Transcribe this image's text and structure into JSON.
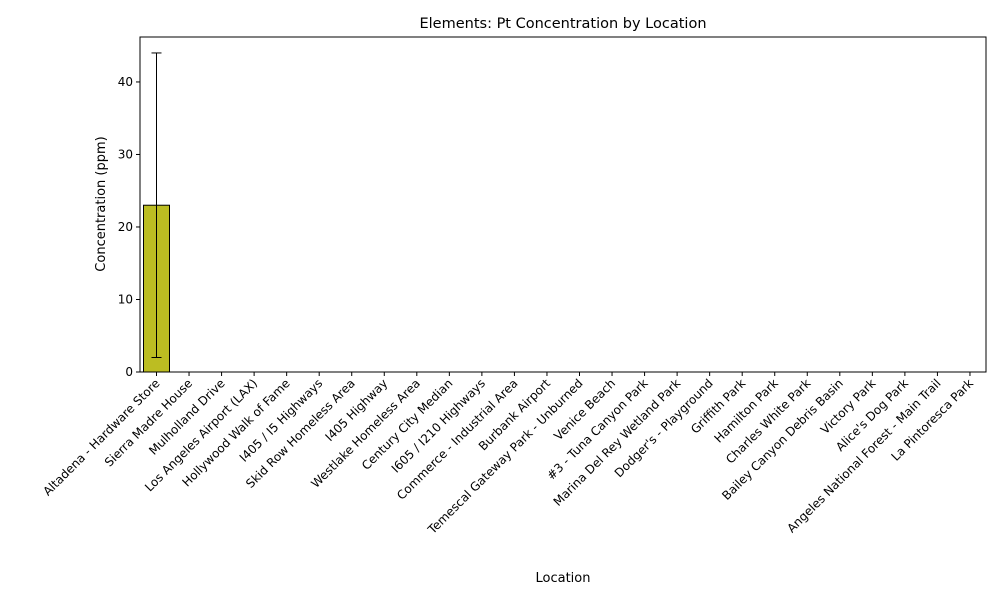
{
  "chart_data": {
    "type": "bar",
    "title": "Elements: Pt Concentration by Location",
    "xlabel": "Location",
    "ylabel": "Concentration (ppm)",
    "ylim": [
      0,
      46.2
    ],
    "yticks": [
      0,
      10,
      20,
      30,
      40
    ],
    "categories": [
      "Altadena - Hardware Store",
      "Sierra Madre House",
      "Mulholland Drive",
      "Los Angeles Airport (LAX)",
      "Hollywood Walk of Fame",
      "I405 / I5 Highways",
      "Skid Row Homeless Area",
      "I405 Highway",
      "Westlake Homeless Area",
      "Century City Median",
      "I605 / I210 Highways",
      "Commerce - Industrial Area",
      "Burbank Airport",
      "Temescal Gateway Park - Unburned",
      "Venice Beach",
      "#3 - Tuna Canyon Park",
      "Marina Del Rey Wetland Park",
      "Dodger's - Playground",
      "Griffith Park",
      "Hamilton Park",
      "Charles White Park",
      "Bailey Canyon Debris Basin",
      "Victory Park",
      "Alice's Dog Park",
      "Angeles National Forest - Main Trail",
      "La Pintoresca Park"
    ],
    "values": [
      23,
      0,
      0,
      0,
      0,
      0,
      0,
      0,
      0,
      0,
      0,
      0,
      0,
      0,
      0,
      0,
      0,
      0,
      0,
      0,
      0,
      0,
      0,
      0,
      0,
      0
    ],
    "error_low": [
      2,
      null,
      null,
      null,
      null,
      null,
      null,
      null,
      null,
      null,
      null,
      null,
      null,
      null,
      null,
      null,
      null,
      null,
      null,
      null,
      null,
      null,
      null,
      null,
      null,
      null
    ],
    "error_high": [
      44,
      null,
      null,
      null,
      null,
      null,
      null,
      null,
      null,
      null,
      null,
      null,
      null,
      null,
      null,
      null,
      null,
      null,
      null,
      null,
      null,
      null,
      null,
      null,
      null,
      null
    ],
    "bar_color": "#bcbd22",
    "edge_color": "#000000",
    "grid": false,
    "legend": false
  }
}
